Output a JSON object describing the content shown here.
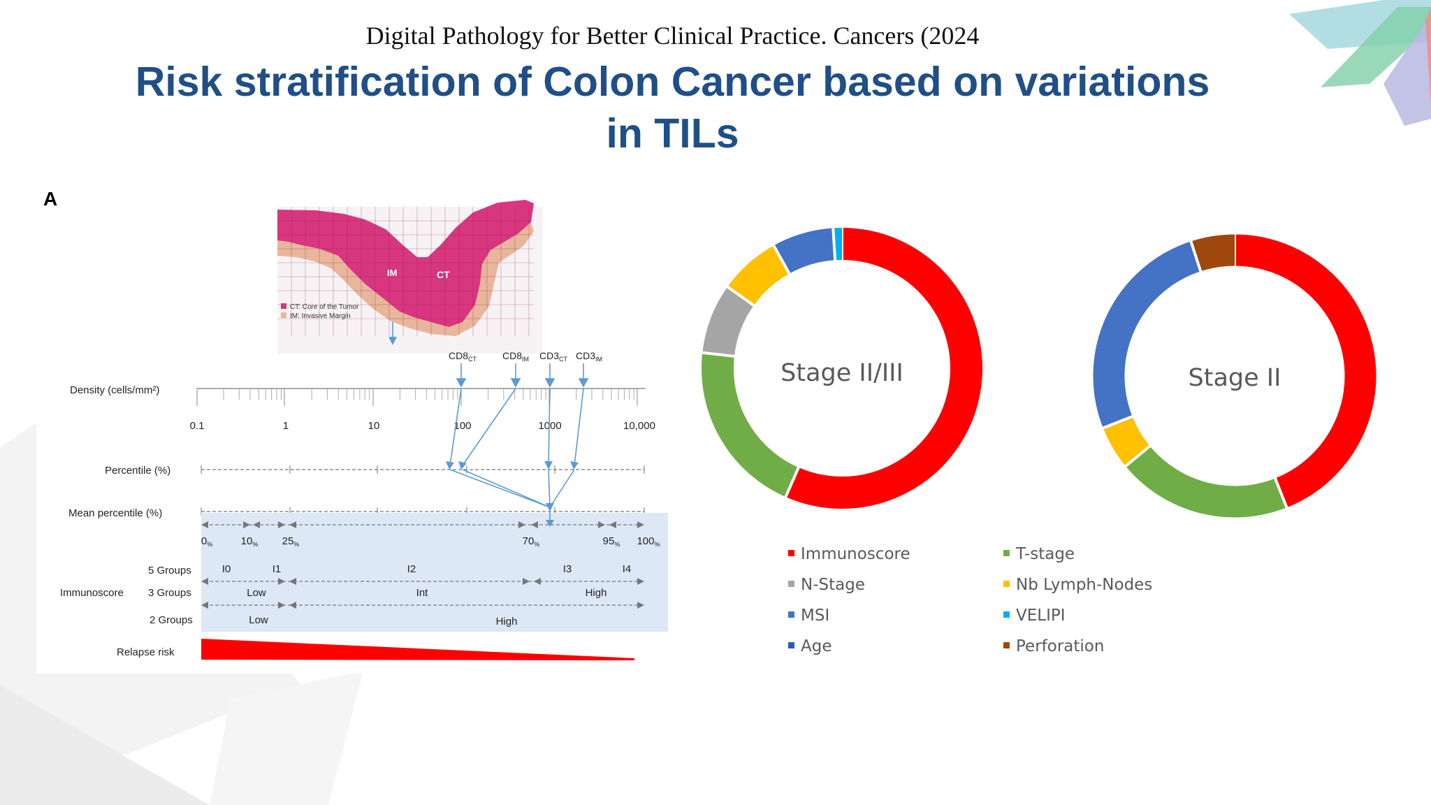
{
  "slide": {
    "subtitle": "Digital Pathology for Better Clinical Practice. Cancers (2024",
    "title_line1": "Risk stratification of Colon Cancer based on variations",
    "title_line2": "in TILs"
  },
  "figure_a": {
    "panel_label": "A",
    "tissue_labels": {
      "im": "IM",
      "ct": "CT"
    },
    "tissue_legend": [
      "CT: Core of the Tumor",
      "IM: Invasive Margin"
    ],
    "markers": [
      "CD8CT",
      "CD8IM",
      "CD3CT",
      "CD3IM"
    ],
    "marker_parts": [
      {
        "main": "CD8",
        "sub": "CT"
      },
      {
        "main": "CD8",
        "sub": "IM"
      },
      {
        "main": "CD3",
        "sub": "CT"
      },
      {
        "main": "CD3",
        "sub": "IM"
      }
    ],
    "density_label": "Density (cells/mm²)",
    "density_ticks": [
      "0.1",
      "1",
      "10",
      "100",
      "1000",
      "10,000"
    ],
    "percentile_label": "Percentile (%)",
    "mean_percentile_label": "Mean percentile (%)",
    "percentile_marks": [
      {
        "value": "0",
        "unit": "%"
      },
      {
        "value": "10",
        "unit": "%"
      },
      {
        "value": "25",
        "unit": "%"
      },
      {
        "value": "70",
        "unit": "%"
      },
      {
        "value": "95",
        "unit": "%"
      },
      {
        "value": "100",
        "unit": "%"
      }
    ],
    "immunoscore_label": "Immunoscore",
    "groups": [
      {
        "label": "5 Groups",
        "segments": [
          "I0",
          "I1",
          "I2",
          "I3",
          "I4"
        ]
      },
      {
        "label": "3 Groups",
        "segments": [
          "Low",
          "Int",
          "High"
        ]
      },
      {
        "label": "2 Groups",
        "segments": [
          "Low",
          "High"
        ]
      }
    ],
    "relapse_label": "Relapse risk"
  },
  "donuts": [
    {
      "center_label": "Stage II/III",
      "slices": [
        {
          "name": "Immunoscore",
          "value": 56,
          "color": "#ff0000"
        },
        {
          "name": "T-stage",
          "value": 20,
          "color": "#70ad47"
        },
        {
          "name": "N-Stage",
          "value": 8,
          "color": "#a5a5a5"
        },
        {
          "name": "Nb Lymph-Nodes",
          "value": 7,
          "color": "#ffc000"
        },
        {
          "name": "MSI",
          "value": 7,
          "color": "#4472c4"
        },
        {
          "name": "VELIPI",
          "value": 1,
          "color": "#00b0f0"
        }
      ]
    },
    {
      "center_label": "Stage II",
      "slices": [
        {
          "name": "Immunoscore",
          "value": 44,
          "color": "#ff0000"
        },
        {
          "name": "T-stage",
          "value": 20,
          "color": "#70ad47"
        },
        {
          "name": "Nb Lymph-Nodes",
          "value": 5,
          "color": "#ffc000"
        },
        {
          "name": "MSI",
          "value": 26,
          "color": "#4472c4"
        },
        {
          "name": "Perforation",
          "value": 5,
          "color": "#9e480e"
        }
      ]
    }
  ],
  "legend": [
    {
      "label": "Immunoscore",
      "color": "#ff0000"
    },
    {
      "label": "T-stage",
      "color": "#70ad47"
    },
    {
      "label": "N-Stage",
      "color": "#a5a5a5"
    },
    {
      "label": "Nb Lymph-Nodes",
      "color": "#ffc000"
    },
    {
      "label": "MSI",
      "color": "#4472c4"
    },
    {
      "label": "VELIPI",
      "color": "#00b0f0"
    },
    {
      "label": "Age",
      "color": "#2e5ea8"
    },
    {
      "label": "Perforation",
      "color": "#9e480e"
    }
  ]
}
